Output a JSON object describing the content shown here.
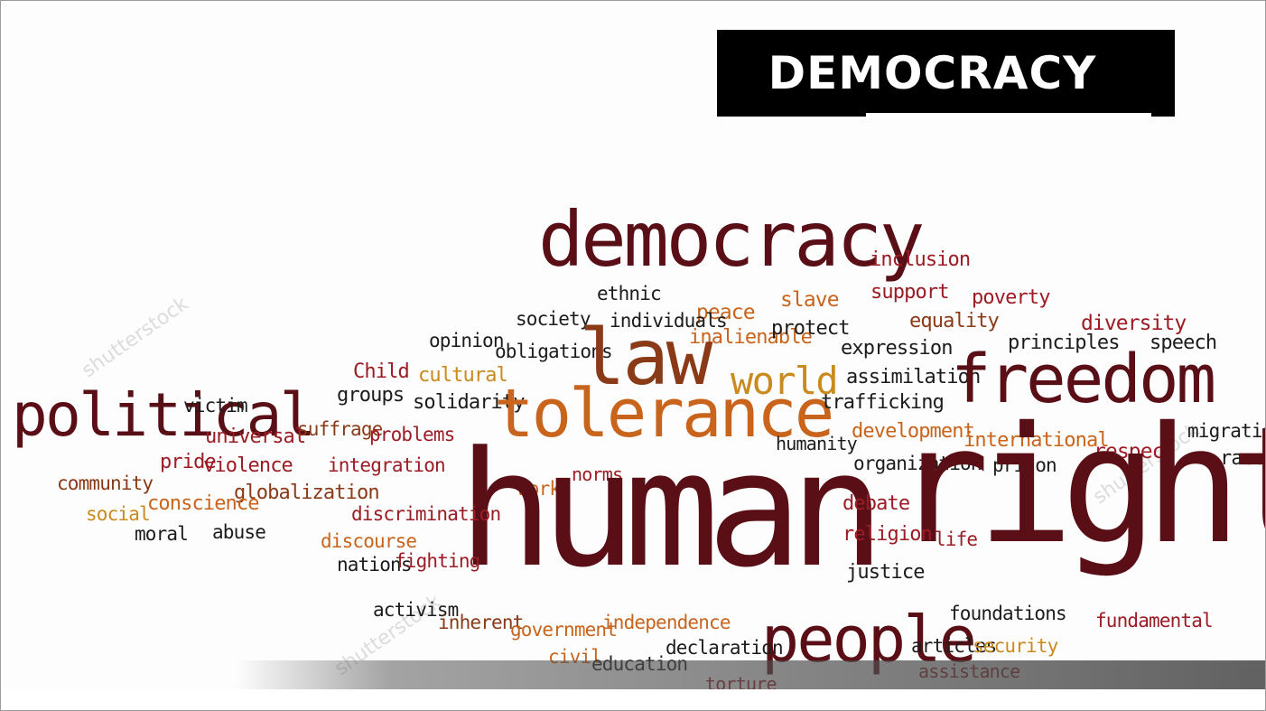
{
  "title": "DEMOCRACY",
  "colors": {
    "dark_red": "#5a0f16",
    "red": "#9b1c24",
    "brown": "#8a3a16",
    "orange": "#c8641c",
    "gold": "#c98a1e",
    "black": "#1c1c1c"
  },
  "watermark": "shutterstock",
  "words": [
    {
      "text": "democracy",
      "color": "dark_red"
    },
    {
      "text": "inclusion",
      "color": "red"
    },
    {
      "text": "support",
      "color": "red"
    },
    {
      "text": "poverty",
      "color": "red"
    },
    {
      "text": "ethnic",
      "color": "black"
    },
    {
      "text": "slave",
      "color": "orange"
    },
    {
      "text": "peace",
      "color": "orange"
    },
    {
      "text": "individuals",
      "color": "black"
    },
    {
      "text": "society",
      "color": "black"
    },
    {
      "text": "equality",
      "color": "brown"
    },
    {
      "text": "diversity",
      "color": "red"
    },
    {
      "text": "inalienable",
      "color": "orange"
    },
    {
      "text": "protect",
      "color": "black"
    },
    {
      "text": "opinion",
      "color": "black"
    },
    {
      "text": "obligations",
      "color": "black"
    },
    {
      "text": "law",
      "color": "brown"
    },
    {
      "text": "expression",
      "color": "black"
    },
    {
      "text": "principles",
      "color": "black"
    },
    {
      "text": "speech",
      "color": "black"
    },
    {
      "text": "Child",
      "color": "red"
    },
    {
      "text": "cultural",
      "color": "gold"
    },
    {
      "text": "world",
      "color": "gold"
    },
    {
      "text": "assimilation",
      "color": "black"
    },
    {
      "text": "freedom",
      "color": "dark_red"
    },
    {
      "text": "political",
      "color": "dark_red"
    },
    {
      "text": "victim",
      "color": "black"
    },
    {
      "text": "groups",
      "color": "black"
    },
    {
      "text": "solidarity",
      "color": "black"
    },
    {
      "text": "tolerance",
      "color": "orange"
    },
    {
      "text": "trafficking",
      "color": "black"
    },
    {
      "text": "universal",
      "color": "red"
    },
    {
      "text": "suffrage",
      "color": "brown"
    },
    {
      "text": "problems",
      "color": "red"
    },
    {
      "text": "humanity",
      "color": "black"
    },
    {
      "text": "development",
      "color": "orange"
    },
    {
      "text": "international",
      "color": "orange"
    },
    {
      "text": "migration",
      "color": "black"
    },
    {
      "text": "pride",
      "color": "red"
    },
    {
      "text": "violence",
      "color": "red"
    },
    {
      "text": "integration",
      "color": "red"
    },
    {
      "text": "respect",
      "color": "red"
    },
    {
      "text": "prison",
      "color": "black"
    },
    {
      "text": "race",
      "color": "black"
    },
    {
      "text": "organization",
      "color": "black"
    },
    {
      "text": "norms",
      "color": "red"
    },
    {
      "text": "community",
      "color": "brown"
    },
    {
      "text": "globalization",
      "color": "brown"
    },
    {
      "text": "work",
      "color": "orange"
    },
    {
      "text": "social",
      "color": "gold"
    },
    {
      "text": "conscience",
      "color": "orange"
    },
    {
      "text": "human",
      "color": "dark_red"
    },
    {
      "text": "rights",
      "color": "dark_red"
    },
    {
      "text": "debate",
      "color": "red"
    },
    {
      "text": "discrimination",
      "color": "red"
    },
    {
      "text": "moral",
      "color": "black"
    },
    {
      "text": "abuse",
      "color": "black"
    },
    {
      "text": "religion",
      "color": "red"
    },
    {
      "text": "life",
      "color": "red"
    },
    {
      "text": "discourse",
      "color": "orange"
    },
    {
      "text": "nations",
      "color": "black"
    },
    {
      "text": "fighting",
      "color": "red"
    },
    {
      "text": "justice",
      "color": "black"
    },
    {
      "text": "activism",
      "color": "black"
    },
    {
      "text": "foundations",
      "color": "black"
    },
    {
      "text": "inherent",
      "color": "brown"
    },
    {
      "text": "government",
      "color": "orange"
    },
    {
      "text": "independence",
      "color": "orange"
    },
    {
      "text": "fundamental",
      "color": "red"
    },
    {
      "text": "people",
      "color": "dark_red"
    },
    {
      "text": "articles",
      "color": "black"
    },
    {
      "text": "security",
      "color": "gold"
    },
    {
      "text": "civil",
      "color": "orange"
    },
    {
      "text": "education",
      "color": "black"
    },
    {
      "text": "declaration",
      "color": "black"
    },
    {
      "text": "assistance",
      "color": "red"
    },
    {
      "text": "torture",
      "color": "red"
    }
  ]
}
